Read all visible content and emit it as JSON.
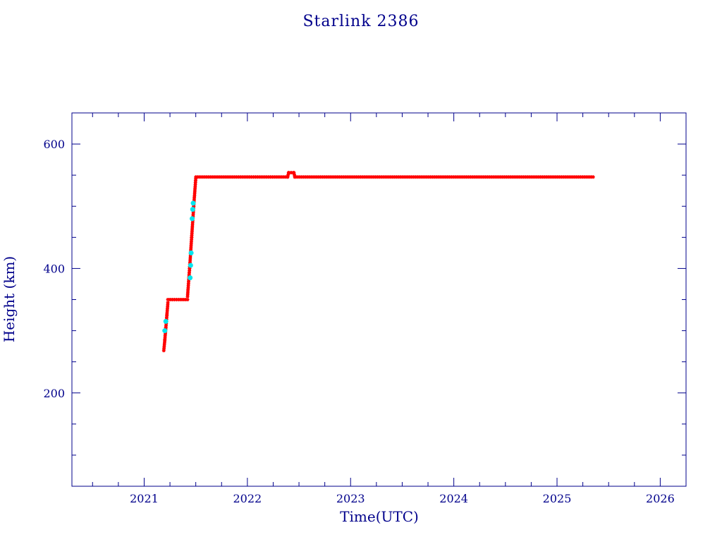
{
  "chart_data": {
    "type": "scatter",
    "title": "Starlink 2386",
    "xlabel": "Time(UTC)",
    "ylabel": "Height (km)",
    "xlim": [
      2020.3,
      2026.25
    ],
    "ylim": [
      50,
      650
    ],
    "x_ticks": [
      {
        "value": 2021,
        "label": "2021"
      },
      {
        "value": 2022,
        "label": "2022"
      },
      {
        "value": 2023,
        "label": "2023"
      },
      {
        "value": 2024,
        "label": "2024"
      },
      {
        "value": 2025,
        "label": "2025"
      },
      {
        "value": 2026,
        "label": "2026"
      }
    ],
    "y_ticks": [
      {
        "value": 200,
        "label": "200"
      },
      {
        "value": 400,
        "label": "400"
      },
      {
        "value": 600,
        "label": "600"
      }
    ],
    "grid": false,
    "colors": {
      "axis": "#00008b",
      "main_series": "#ff0000",
      "secondary_series": "#00e5ee"
    },
    "series": [
      {
        "color": "#ff0000",
        "marker": "asterisk",
        "segments": [
          {
            "x": [
              2021.19,
              2021.2,
              2021.21,
              2021.22,
              2021.23
            ],
            "y": [
              268,
              285,
              305,
              325,
              345
            ]
          },
          {
            "x": [
              2021.23,
              2021.42
            ],
            "y": [
              350,
              350
            ]
          },
          {
            "x": [
              2021.42,
              2021.44,
              2021.46,
              2021.48,
              2021.5
            ],
            "y": [
              355,
              400,
              450,
              500,
              545
            ]
          },
          {
            "x": [
              2021.5,
              2022.39,
              2022.4,
              2022.45,
              2022.46,
              2025.35
            ],
            "y": [
              547,
              547,
              554,
              554,
              547,
              547
            ]
          }
        ]
      },
      {
        "color": "#00e5ee",
        "marker": "dot",
        "points": {
          "x": [
            2021.2,
            2021.21,
            2021.445,
            2021.45,
            2021.455,
            2021.465,
            2021.47,
            2021.475
          ],
          "y": [
            300,
            315,
            385,
            405,
            425,
            480,
            495,
            505
          ]
        }
      }
    ]
  }
}
